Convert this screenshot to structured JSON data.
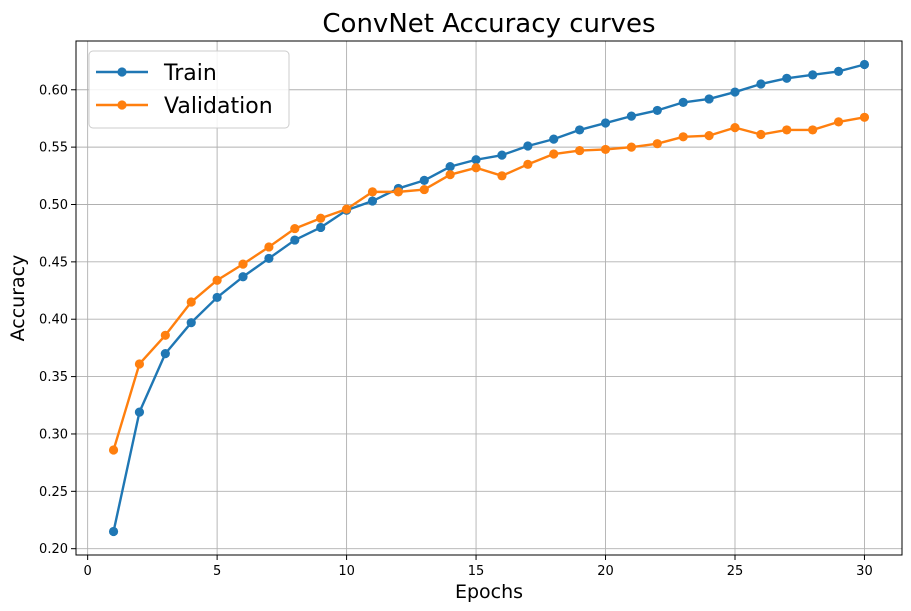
{
  "chart_data": {
    "type": "line",
    "title": "ConvNet Accuracy curves",
    "xlabel": "Epochs",
    "ylabel": "Accuracy",
    "xlim": [
      -0.45,
      31.45
    ],
    "ylim": [
      0.1945,
      0.6425
    ],
    "xticks": [
      0,
      5,
      10,
      15,
      20,
      25,
      30
    ],
    "yticks": [
      0.2,
      0.25,
      0.3,
      0.35,
      0.4,
      0.45,
      0.5,
      0.55,
      0.6
    ],
    "grid": true,
    "legend_position": "top-left",
    "x": [
      1,
      2,
      3,
      4,
      5,
      6,
      7,
      8,
      9,
      10,
      11,
      12,
      13,
      14,
      15,
      16,
      17,
      18,
      19,
      20,
      21,
      22,
      23,
      24,
      25,
      26,
      27,
      28,
      29,
      30
    ],
    "series": [
      {
        "name": "Train",
        "color": "#1f77b4",
        "values": [
          0.215,
          0.319,
          0.37,
          0.397,
          0.419,
          0.437,
          0.453,
          0.469,
          0.48,
          0.495,
          0.503,
          0.514,
          0.521,
          0.533,
          0.539,
          0.543,
          0.551,
          0.557,
          0.565,
          0.571,
          0.577,
          0.582,
          0.589,
          0.592,
          0.598,
          0.605,
          0.61,
          0.613,
          0.616,
          0.622
        ]
      },
      {
        "name": "Validation",
        "color": "#ff7f0e",
        "values": [
          0.286,
          0.361,
          0.386,
          0.415,
          0.434,
          0.448,
          0.463,
          0.479,
          0.488,
          0.496,
          0.511,
          0.511,
          0.513,
          0.526,
          0.532,
          0.525,
          0.535,
          0.544,
          0.547,
          0.548,
          0.55,
          0.553,
          0.559,
          0.56,
          0.567,
          0.561,
          0.565,
          0.565,
          0.572,
          0.576
        ]
      }
    ]
  }
}
